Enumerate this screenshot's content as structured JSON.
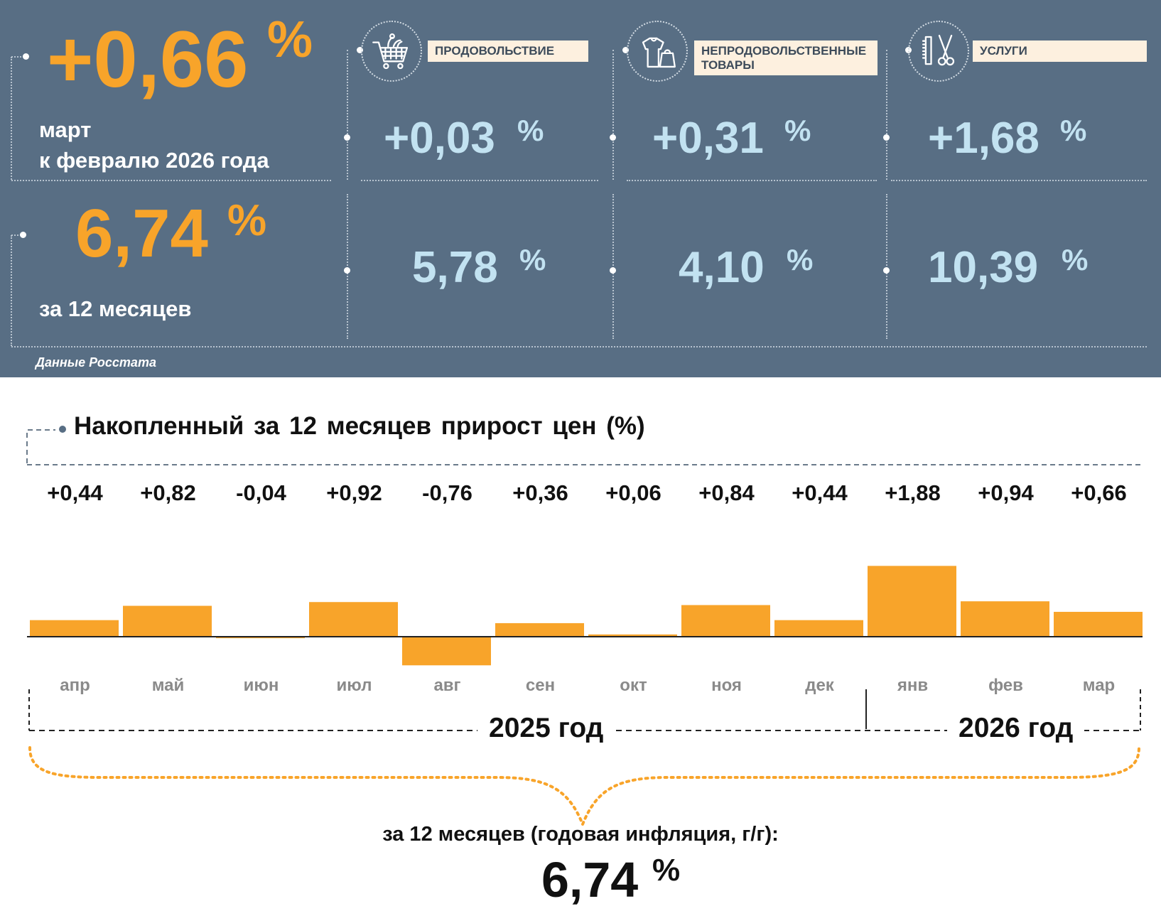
{
  "header": {
    "monthly_value": "+0,66",
    "monthly_unit": "%",
    "monthly_caption_line1": "март",
    "monthly_caption_line2": "к февралю 2026 года",
    "annual_value": "6,74",
    "annual_unit": "%",
    "annual_caption": "за 12 месяцев",
    "source": "Данные Росстата"
  },
  "categories": [
    {
      "label": "продовольствие",
      "icon": "shopping-cart-icon",
      "monthly": "+0,03",
      "annual": "5,78",
      "unit": "%"
    },
    {
      "label": "непродовольственные товары",
      "icon": "clothing-bag-icon",
      "monthly": "+0,31",
      "annual": "4,10",
      "unit": "%"
    },
    {
      "label": "услуги",
      "icon": "comb-scissors-icon",
      "monthly": "+1,68",
      "annual": "10,39",
      "unit": "%"
    }
  ],
  "colors": {
    "panel": "#586e84",
    "accent": "#f8a42a",
    "light_blue": "#c2e2f1",
    "label_bg": "#fdf0df"
  },
  "chart_title": "Накопленный за 12 месяцев прирост цен (%)",
  "chart_data": {
    "type": "bar",
    "title": "Накопленный за 12 месяцев прирост цен (%)",
    "categories": [
      "апр",
      "май",
      "июн",
      "июл",
      "авг",
      "сен",
      "окт",
      "ноя",
      "дек",
      "янв",
      "фев",
      "мар"
    ],
    "values": [
      0.44,
      0.82,
      -0.04,
      0.92,
      -0.76,
      0.36,
      0.06,
      0.84,
      0.44,
      1.88,
      0.94,
      0.66
    ],
    "value_labels": [
      "+0,44",
      "+0,82",
      "-0,04",
      "+0,92",
      "-0,76",
      "+0,36",
      "+0,06",
      "+0,84",
      "+0,44",
      "+1,88",
      "+0,94",
      "+0,66"
    ],
    "groups": [
      {
        "label": "2025 год",
        "months": 9
      },
      {
        "label": "2026 год",
        "months": 3
      }
    ],
    "color": "#f8a42a"
  },
  "summary": {
    "caption": "за 12 месяцев (годовая инфляция, г/г):",
    "value": "6,74",
    "unit": "%"
  }
}
